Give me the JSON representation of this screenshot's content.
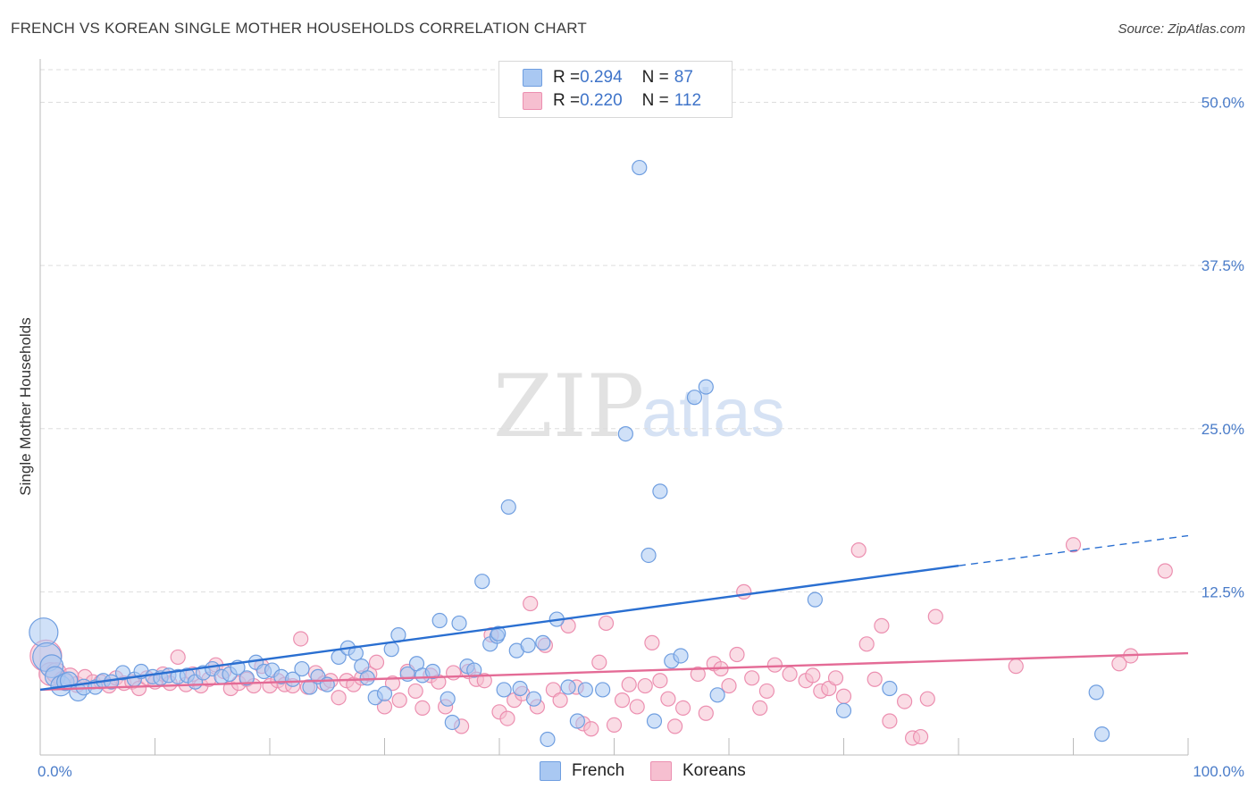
{
  "header": {
    "title": "FRENCH VS KOREAN SINGLE MOTHER HOUSEHOLDS CORRELATION CHART",
    "source": "Source: ZipAtlas.com"
  },
  "colors": {
    "french_fill": "#a9c8f2",
    "french_stroke": "#6f9ee0",
    "french_line": "#2a6fd1",
    "korean_fill": "#f6bfd0",
    "korean_stroke": "#ec8fb0",
    "korean_line": "#e46b96",
    "tick_text": "#4a7cc9",
    "grid": "#dddddd"
  },
  "legend": {
    "rows": [
      {
        "r_label": "R = ",
        "r_value": "0.294",
        "n_label": "N = ",
        "n_value": "87",
        "series": "French"
      },
      {
        "r_label": "R = ",
        "r_value": "0.220",
        "n_label": "N = ",
        "n_value": "112",
        "series": "Koreans"
      }
    ]
  },
  "bottom_legend": {
    "french": "French",
    "koreans": "Koreans"
  },
  "watermark": {
    "zip": "ZIP",
    "atlas": "atlas"
  },
  "chart_data": {
    "type": "scatter",
    "title": "FRENCH VS KOREAN SINGLE MOTHER HOUSEHOLDS CORRELATION CHART",
    "xlabel": "",
    "ylabel": "Single Mother Households",
    "xlim": [
      0,
      100
    ],
    "ylim": [
      0,
      52.5
    ],
    "x_tick_labels": [
      {
        "value": 0,
        "label": "0.0%"
      },
      {
        "value": 100,
        "label": "100.0%"
      }
    ],
    "y_tick_labels": [
      {
        "value": 12.5,
        "label": "12.5%"
      },
      {
        "value": 25.0,
        "label": "25.0%"
      },
      {
        "value": 37.5,
        "label": "37.5%"
      },
      {
        "value": 50.0,
        "label": "50.0%"
      }
    ],
    "grid": true,
    "legend_position": "top-center",
    "series": [
      {
        "name": "French",
        "R": 0.294,
        "N": 87,
        "trend": {
          "x0": 0,
          "y0": 5.0,
          "x1": 80,
          "y1": 14.5,
          "dash_to_x": 100,
          "dash_to_y": 16.8
        },
        "points": [
          [
            0.3,
            9.4,
            2
          ],
          [
            0.6,
            7.5,
            2
          ],
          [
            1.0,
            6.8,
            1.6
          ],
          [
            1.3,
            6.0,
            1.4
          ],
          [
            1.8,
            5.3,
            1.4
          ],
          [
            2.2,
            5.6,
            1.2
          ],
          [
            2.5,
            5.7,
            1.2
          ],
          [
            3.3,
            4.8,
            1.2
          ],
          [
            3.8,
            5.2,
            1.1
          ],
          [
            4.8,
            5.2,
            1
          ],
          [
            5.5,
            5.7,
            1
          ],
          [
            6.2,
            5.6,
            1
          ],
          [
            7.2,
            6.3,
            1
          ],
          [
            8.2,
            5.8,
            1
          ],
          [
            8.8,
            6.4,
            1
          ],
          [
            9.8,
            6.0,
            1
          ],
          [
            10.5,
            5.9,
            1
          ],
          [
            11.2,
            6.1,
            1
          ],
          [
            12.0,
            6.0,
            1
          ],
          [
            12.8,
            6.1,
            1
          ],
          [
            13.5,
            5.6,
            1
          ],
          [
            14.2,
            6.3,
            1
          ],
          [
            15.0,
            6.6,
            1
          ],
          [
            15.8,
            6.0,
            1
          ],
          [
            16.5,
            6.2,
            1
          ],
          [
            17.2,
            6.7,
            1
          ],
          [
            18.0,
            5.9,
            1
          ],
          [
            18.8,
            7.1,
            1
          ],
          [
            19.5,
            6.4,
            1
          ],
          [
            20.2,
            6.5,
            1
          ],
          [
            21.0,
            6.0,
            1
          ],
          [
            22.0,
            5.8,
            1
          ],
          [
            22.8,
            6.6,
            1
          ],
          [
            23.5,
            5.2,
            1
          ],
          [
            24.2,
            6.0,
            1
          ],
          [
            25.0,
            5.4,
            1
          ],
          [
            26.0,
            7.5,
            1
          ],
          [
            26.8,
            8.2,
            1
          ],
          [
            27.5,
            7.8,
            1
          ],
          [
            28.0,
            6.8,
            1
          ],
          [
            28.5,
            5.9,
            1
          ],
          [
            29.2,
            4.4,
            1
          ],
          [
            30.0,
            4.7,
            1
          ],
          [
            30.6,
            8.1,
            1
          ],
          [
            31.2,
            9.2,
            1
          ],
          [
            32.0,
            6.2,
            1
          ],
          [
            32.8,
            7.0,
            1
          ],
          [
            33.3,
            6.1,
            1
          ],
          [
            34.2,
            6.4,
            1
          ],
          [
            34.8,
            10.3,
            1
          ],
          [
            35.5,
            4.3,
            1
          ],
          [
            35.9,
            2.5,
            1
          ],
          [
            36.5,
            10.1,
            1
          ],
          [
            37.2,
            6.8,
            1
          ],
          [
            37.8,
            6.5,
            1
          ],
          [
            38.5,
            13.3,
            1
          ],
          [
            39.2,
            8.5,
            1
          ],
          [
            39.8,
            9.1,
            1
          ],
          [
            40.4,
            5.0,
            1
          ],
          [
            40.8,
            19.0,
            1
          ],
          [
            41.5,
            8.0,
            1
          ],
          [
            42.5,
            8.4,
            1
          ],
          [
            43.0,
            4.3,
            1
          ],
          [
            43.8,
            8.6,
            1
          ],
          [
            44.2,
            1.2,
            1
          ],
          [
            45.0,
            10.4,
            1
          ],
          [
            46.0,
            5.2,
            1
          ],
          [
            46.8,
            2.6,
            1
          ],
          [
            47.5,
            5.0,
            1
          ],
          [
            49.0,
            5.0,
            1
          ],
          [
            39.9,
            9.3,
            1
          ],
          [
            41.8,
            5.1,
            1
          ],
          [
            53.0,
            15.3,
            1
          ],
          [
            54.0,
            20.2,
            1
          ],
          [
            53.5,
            2.6,
            1
          ],
          [
            55.0,
            7.2,
            1
          ],
          [
            55.8,
            7.6,
            1
          ],
          [
            57.0,
            27.4,
            1
          ],
          [
            58.0,
            28.2,
            1
          ],
          [
            59.0,
            4.6,
            1
          ],
          [
            51.0,
            24.6,
            1
          ],
          [
            52.2,
            45.0,
            1
          ],
          [
            67.5,
            11.9,
            1
          ],
          [
            70.0,
            3.4,
            1
          ],
          [
            74.0,
            5.1,
            1
          ],
          [
            92.0,
            4.8,
            1
          ],
          [
            92.5,
            1.6,
            1
          ]
        ]
      },
      {
        "name": "Koreans",
        "R": 0.22,
        "N": 112,
        "trend": {
          "x0": 0,
          "y0": 5.0,
          "x1": 100,
          "y1": 7.8
        },
        "points": [
          [
            0.5,
            7.6,
            2.2
          ],
          [
            0.9,
            6.2,
            1.6
          ],
          [
            1.4,
            6.3,
            1.4
          ],
          [
            2.0,
            5.7,
            1.3
          ],
          [
            2.6,
            6.0,
            1.2
          ],
          [
            3.2,
            5.4,
            1.1
          ],
          [
            3.9,
            6.0,
            1
          ],
          [
            4.6,
            5.6,
            1
          ],
          [
            5.3,
            5.6,
            1
          ],
          [
            6.0,
            5.3,
            1
          ],
          [
            6.6,
            5.9,
            1
          ],
          [
            7.3,
            5.5,
            1
          ],
          [
            8.0,
            5.6,
            1
          ],
          [
            8.6,
            5.1,
            1
          ],
          [
            9.3,
            5.9,
            1
          ],
          [
            10.0,
            5.6,
            1
          ],
          [
            10.7,
            6.2,
            1
          ],
          [
            11.3,
            5.5,
            1
          ],
          [
            12.0,
            7.5,
            1
          ],
          [
            12.7,
            5.4,
            1
          ],
          [
            13.3,
            6.2,
            1
          ],
          [
            14.0,
            5.3,
            1
          ],
          [
            14.7,
            5.8,
            1
          ],
          [
            15.3,
            6.9,
            1
          ],
          [
            16.0,
            6.4,
            1
          ],
          [
            16.6,
            5.1,
            1
          ],
          [
            17.3,
            5.5,
            1
          ],
          [
            18.0,
            5.8,
            1
          ],
          [
            18.6,
            5.3,
            1
          ],
          [
            19.3,
            6.8,
            1
          ],
          [
            20.0,
            5.3,
            1
          ],
          [
            20.7,
            5.7,
            1
          ],
          [
            21.3,
            5.4,
            1
          ],
          [
            22.0,
            5.3,
            1
          ],
          [
            22.7,
            8.9,
            1
          ],
          [
            23.3,
            5.2,
            1
          ],
          [
            24.0,
            6.3,
            1
          ],
          [
            24.7,
            5.5,
            1
          ],
          [
            25.3,
            5.7,
            1
          ],
          [
            26.0,
            4.4,
            1
          ],
          [
            26.7,
            5.7,
            1
          ],
          [
            27.3,
            5.4,
            1
          ],
          [
            28.0,
            5.9,
            1
          ],
          [
            28.7,
            6.2,
            1
          ],
          [
            29.3,
            7.1,
            1
          ],
          [
            30.0,
            3.7,
            1
          ],
          [
            30.7,
            5.5,
            1
          ],
          [
            31.3,
            4.2,
            1
          ],
          [
            32.0,
            6.4,
            1
          ],
          [
            32.7,
            4.9,
            1
          ],
          [
            33.3,
            3.6,
            1
          ],
          [
            34.0,
            6.1,
            1
          ],
          [
            34.7,
            5.6,
            1
          ],
          [
            35.3,
            3.7,
            1
          ],
          [
            36.0,
            6.3,
            1
          ],
          [
            36.7,
            2.2,
            1
          ],
          [
            37.3,
            6.4,
            1
          ],
          [
            38.0,
            5.8,
            1
          ],
          [
            38.7,
            5.7,
            1
          ],
          [
            39.3,
            9.2,
            1
          ],
          [
            40.0,
            3.3,
            1
          ],
          [
            40.7,
            2.8,
            1
          ],
          [
            41.3,
            4.2,
            1
          ],
          [
            42.0,
            4.7,
            1
          ],
          [
            42.7,
            11.6,
            1
          ],
          [
            43.3,
            3.7,
            1
          ],
          [
            44.0,
            8.4,
            1
          ],
          [
            44.7,
            5.0,
            1
          ],
          [
            45.3,
            4.2,
            1
          ],
          [
            46.0,
            9.9,
            1
          ],
          [
            46.7,
            5.2,
            1
          ],
          [
            47.3,
            2.4,
            1
          ],
          [
            48.0,
            2.0,
            1
          ],
          [
            48.7,
            7.1,
            1
          ],
          [
            49.3,
            10.1,
            1
          ],
          [
            50.0,
            2.3,
            1
          ],
          [
            50.7,
            4.2,
            1
          ],
          [
            51.3,
            5.4,
            1
          ],
          [
            52.0,
            3.7,
            1
          ],
          [
            52.7,
            5.3,
            1
          ],
          [
            53.3,
            8.6,
            1
          ],
          [
            54.0,
            5.7,
            1
          ],
          [
            54.7,
            4.3,
            1
          ],
          [
            55.3,
            2.2,
            1
          ],
          [
            56.0,
            3.6,
            1
          ],
          [
            57.3,
            6.2,
            1
          ],
          [
            58.0,
            3.2,
            1
          ],
          [
            58.7,
            7.0,
            1
          ],
          [
            59.3,
            6.6,
            1
          ],
          [
            60.0,
            5.3,
            1
          ],
          [
            60.7,
            7.7,
            1
          ],
          [
            61.3,
            12.5,
            1
          ],
          [
            62.0,
            5.9,
            1
          ],
          [
            62.7,
            3.6,
            1
          ],
          [
            63.3,
            4.9,
            1
          ],
          [
            64.0,
            6.9,
            1
          ],
          [
            65.3,
            6.2,
            1
          ],
          [
            66.7,
            5.7,
            1
          ],
          [
            67.3,
            6.1,
            1
          ],
          [
            68.0,
            4.9,
            1
          ],
          [
            68.7,
            5.1,
            1
          ],
          [
            69.3,
            5.9,
            1
          ],
          [
            70.0,
            4.5,
            1
          ],
          [
            71.3,
            15.7,
            1
          ],
          [
            72.0,
            8.5,
            1
          ],
          [
            72.7,
            5.8,
            1
          ],
          [
            73.3,
            9.9,
            1
          ],
          [
            74.0,
            2.6,
            1
          ],
          [
            75.3,
            4.1,
            1
          ],
          [
            76.0,
            1.3,
            1
          ],
          [
            76.7,
            1.4,
            1
          ],
          [
            77.3,
            4.3,
            1
          ],
          [
            78.0,
            10.6,
            1
          ],
          [
            85.0,
            6.8,
            1
          ],
          [
            90.0,
            16.1,
            1
          ],
          [
            94.0,
            7.0,
            1
          ],
          [
            95.0,
            7.6,
            1
          ],
          [
            98.0,
            14.1,
            1
          ]
        ]
      }
    ]
  }
}
